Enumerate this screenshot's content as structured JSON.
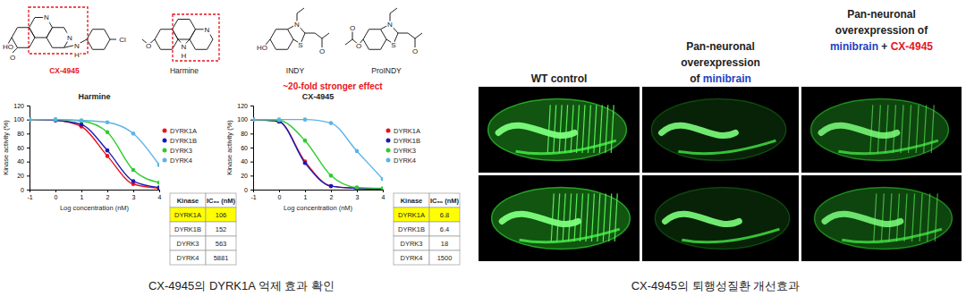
{
  "structures": [
    {
      "name": "CX-4945",
      "color": "#e8141c",
      "atoms": [
        "HO",
        "O",
        "N",
        "N",
        "N",
        "H",
        "Cl"
      ]
    },
    {
      "name": "Harmine",
      "atoms": [
        "O",
        "N",
        "H",
        "N"
      ]
    },
    {
      "name": "INDY",
      "atoms": [
        "HO",
        "S",
        "N",
        "O"
      ]
    },
    {
      "name": "ProINDY",
      "atoms": [
        "O",
        "O",
        "S",
        "N",
        "O"
      ]
    }
  ],
  "annotation": {
    "text": "~20-fold stronger effect",
    "color": "#e8141c"
  },
  "chart_data": [
    {
      "type": "line",
      "title": "Harmine",
      "x_label": "Log concentration (nM)",
      "y_label": "Kinase activity (%)",
      "x": [
        -1,
        0,
        1,
        2,
        3,
        4
      ],
      "xlim": [
        -1,
        4
      ],
      "xticks": [
        -1,
        0,
        1,
        2,
        3,
        4
      ],
      "ylim": [
        0,
        120
      ],
      "yticks": [
        0,
        20,
        40,
        60,
        80,
        100,
        120
      ],
      "marker": "circle",
      "legend": "right",
      "series": [
        {
          "name": "DYRK1A",
          "color": "#e8141c",
          "values": [
            100,
            99,
            90,
            48,
            8,
            2
          ]
        },
        {
          "name": "DYRK1B",
          "color": "#1a1ab8",
          "values": [
            100,
            99,
            93,
            56,
            12,
            3
          ]
        },
        {
          "name": "DYRK3",
          "color": "#2ecc2e",
          "values": [
            100,
            100,
            98,
            82,
            28,
            10
          ]
        },
        {
          "name": "DYRK4",
          "color": "#5ab4e8",
          "values": [
            100,
            100,
            99,
            96,
            80,
            35
          ]
        }
      ],
      "table": {
        "columns": [
          "Kinase",
          "IC₅₀ (nM)"
        ],
        "rows": [
          [
            "DYRK1A",
            106
          ],
          [
            "DYRK1B",
            152
          ],
          [
            "DYRK3",
            563
          ],
          [
            "DYRK4",
            5881
          ]
        ],
        "highlight_row": 0,
        "highlight_color": "#ffff00"
      }
    },
    {
      "type": "line",
      "title": "CX-4945",
      "x_label": "Log concentration (nM)",
      "y_label": "Kinase activity (%)",
      "x": [
        -1,
        0,
        1,
        2,
        3,
        4
      ],
      "xlim": [
        -1,
        4
      ],
      "xticks": [
        -1,
        0,
        1,
        2,
        3,
        4
      ],
      "ylim": [
        0,
        120
      ],
      "yticks": [
        0,
        20,
        40,
        60,
        80,
        100,
        120
      ],
      "marker": "circle",
      "legend": "right",
      "series": [
        {
          "name": "DYRK1A",
          "color": "#e8141c",
          "values": [
            100,
            97,
            40,
            5,
            2,
            1
          ]
        },
        {
          "name": "DYRK1B",
          "color": "#1a1ab8",
          "values": [
            100,
            97,
            38,
            5,
            2,
            1
          ]
        },
        {
          "name": "DYRK3",
          "color": "#2ecc2e",
          "values": [
            100,
            99,
            70,
            20,
            3,
            2
          ]
        },
        {
          "name": "DYRK4",
          "color": "#5ab4e8",
          "values": [
            100,
            100,
            100,
            95,
            55,
            15
          ]
        }
      ],
      "table": {
        "columns": [
          "Kinase",
          "IC₅₀ (nM)"
        ],
        "rows": [
          [
            "DYRK1A",
            6.8
          ],
          [
            "DYRK1B",
            6.4
          ],
          [
            "DYRK3",
            18.0
          ],
          [
            "DYRK4",
            1500
          ]
        ],
        "highlight_row": 0,
        "highlight_color": "#ffff00"
      }
    }
  ],
  "panels": {
    "headers": [
      [
        [
          {
            "text": "WT control"
          }
        ]
      ],
      [
        [
          {
            "text": "Pan-neuronal"
          }
        ],
        [
          {
            "text": "overexpression"
          }
        ],
        [
          {
            "text": "of "
          },
          {
            "text": "minibrain",
            "color": "#1f3fbf"
          }
        ]
      ],
      [
        [
          {
            "text": "Pan-neuronal"
          }
        ],
        [
          {
            "text": "overexpression of"
          }
        ],
        [
          {
            "text": "minibrain",
            "color": "#1f3fbf"
          },
          {
            "text": " + "
          },
          {
            "text": "CX-4945",
            "color": "#e8141c"
          }
        ]
      ]
    ]
  },
  "captions": [
    "CX-4945의 DYRK1A 억제 효과 확인",
    "CX-4945의 퇴행성질환 개선효과"
  ]
}
